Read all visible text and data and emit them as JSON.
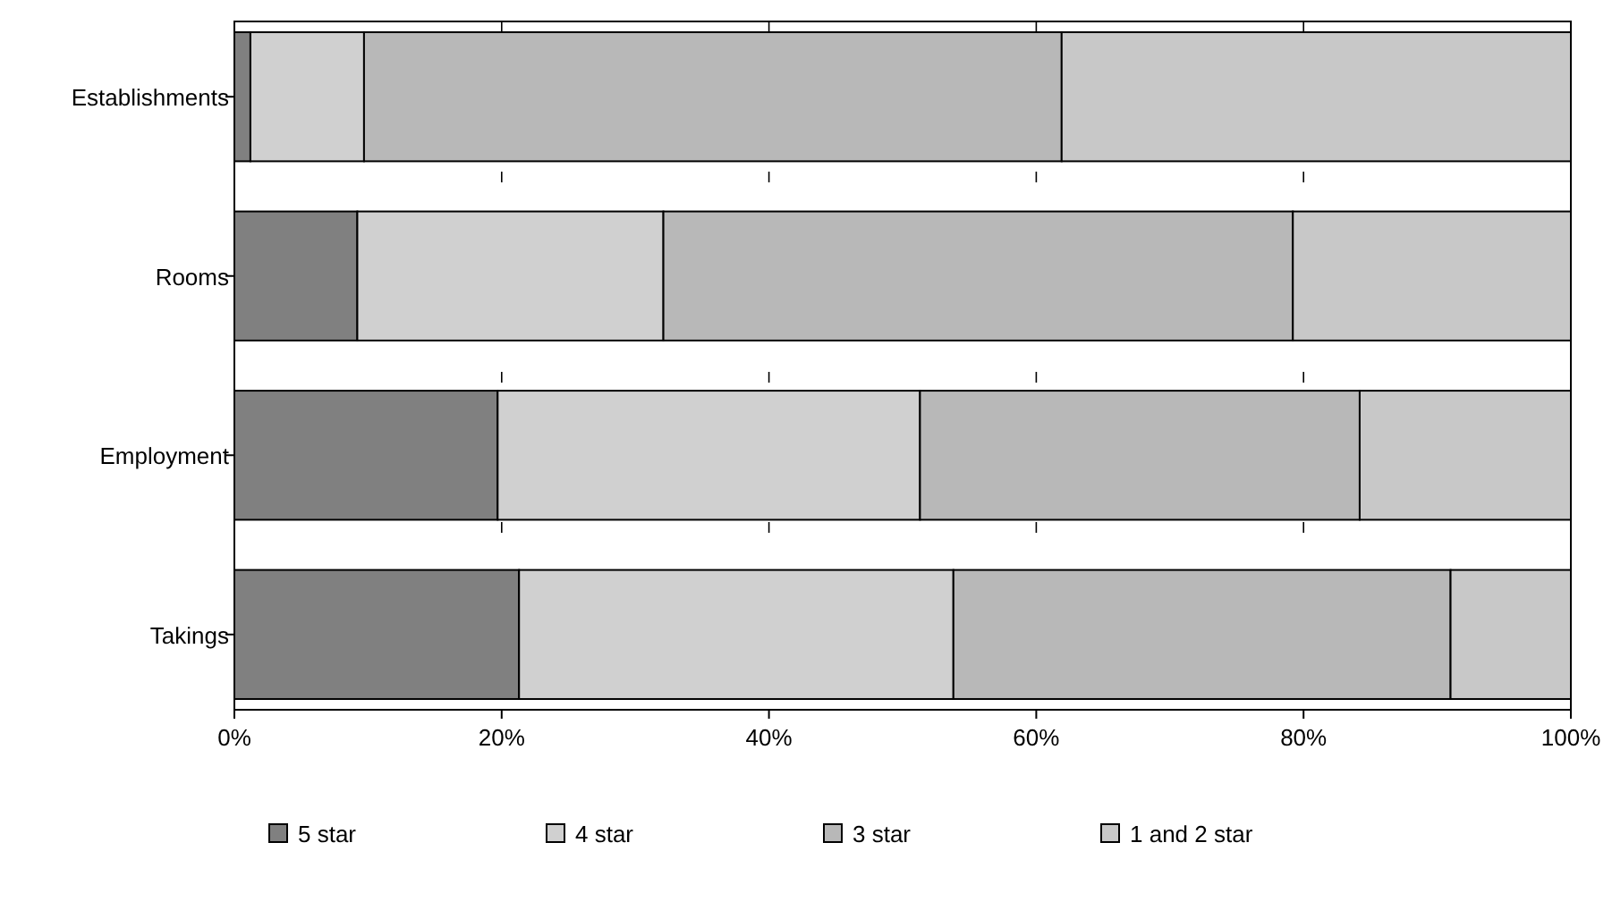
{
  "chart_data": {
    "type": "bar",
    "orientation": "horizontal",
    "stacked": true,
    "categories": [
      "Establishments",
      "Rooms",
      "Employment",
      "Takings"
    ],
    "series": [
      {
        "name": "5 star",
        "color": "#808080",
        "values": [
          1.2,
          9.2,
          19.7,
          21.3
        ]
      },
      {
        "name": "4 star",
        "color": "#d0d0d0",
        "values": [
          8.5,
          22.9,
          31.6,
          32.5
        ]
      },
      {
        "name": "3 star",
        "color": "#b8b8b8",
        "values": [
          52.2,
          47.1,
          32.9,
          37.2
        ]
      },
      {
        "name": "1 and 2 star",
        "color": "#c8c8c8",
        "values": [
          38.1,
          20.8,
          15.8,
          9.0
        ]
      }
    ],
    "xlim": [
      0,
      100
    ],
    "xticks": [
      {
        "value": 0,
        "label": "0%"
      },
      {
        "value": 20,
        "label": "20%"
      },
      {
        "value": 40,
        "label": "40%"
      },
      {
        "value": 60,
        "label": "60%"
      },
      {
        "value": 80,
        "label": "80%"
      },
      {
        "value": 100,
        "label": "100%"
      }
    ],
    "grid": "x",
    "legend": "bottom"
  }
}
